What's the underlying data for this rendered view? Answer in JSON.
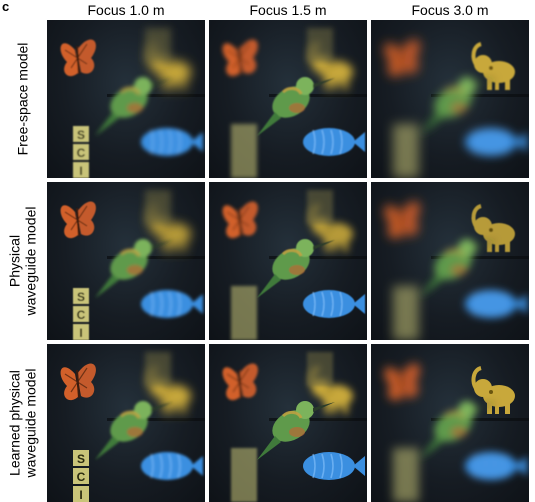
{
  "panel": {
    "letter": "c"
  },
  "columns": [
    {
      "title": "Focus 1.0 m"
    },
    {
      "title": "Focus 1.5 m"
    },
    {
      "title": "Focus 3.0 m"
    }
  ],
  "rows": [
    {
      "lines": [
        "Free-space model"
      ]
    },
    {
      "lines": [
        "Physical",
        "waveguide model"
      ]
    },
    {
      "lines": [
        "Learned physical",
        "waveguide model"
      ]
    }
  ],
  "scene": {
    "objects": [
      "butterfly",
      "bird",
      "fish",
      "elephant-figurine",
      "letter-blocks"
    ],
    "blocks": [
      "S",
      "C",
      "I"
    ]
  },
  "focus_by_column": [
    1.0,
    1.5,
    3.0
  ],
  "colors": {
    "butterfly": "#d2602a",
    "bird_body": "#5e9a4c",
    "fish": "#3a8fe0",
    "elephant": "#c8a83a",
    "blocks": "#c9c479"
  }
}
